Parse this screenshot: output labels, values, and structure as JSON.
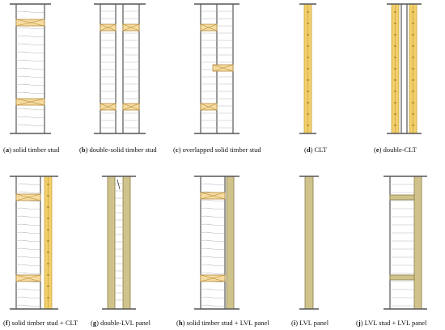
{
  "colors": {
    "clt": "#f2cf6b",
    "clt_edge": "#c9a33b",
    "solid_timber": "#f6dca0",
    "solid_timber_edge": "#b48a3a",
    "lvl": "#cfc28b",
    "lvl_edge": "#8a7c4a",
    "insulation": "#b8b8b8",
    "frame": "#333333",
    "plate": "#555555"
  },
  "panels": [
    {
      "letter": "a",
      "label": "solid timber stud"
    },
    {
      "letter": "b",
      "label": "double-solid timber stud"
    },
    {
      "letter": "c",
      "label": "overlapped solid timber stud"
    },
    {
      "letter": "d",
      "label": "CLT"
    },
    {
      "letter": "e",
      "label": "double-CLT"
    },
    {
      "letter": "f",
      "label": "solid timber stud + CLT"
    },
    {
      "letter": "g",
      "label": "double-LVL panel"
    },
    {
      "letter": "h",
      "label": "solid timber stud + LVL panel"
    },
    {
      "letter": "i",
      "label": "LVL panel"
    },
    {
      "letter": "j",
      "label": "LVL stud + LVL panel"
    }
  ]
}
